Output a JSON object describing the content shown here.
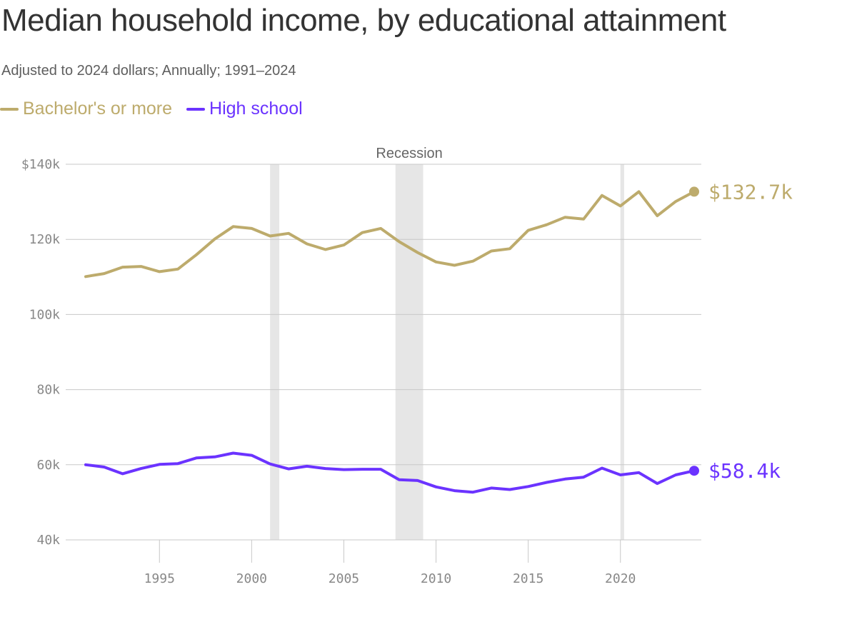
{
  "title": "Median household income, by educational attainment",
  "subtitle": "Adjusted to 2024 dollars; Annually; 1991–2024",
  "legend": [
    {
      "name": "Bachelor's or more",
      "color": "#bdab6c"
    },
    {
      "name": "High school",
      "color": "#6b33ff"
    }
  ],
  "chart_data": {
    "type": "line",
    "title": "Median household income, by educational attainment",
    "subtitle": "Adjusted to 2024 dollars; Annually; 1991–2024",
    "xlabel": "",
    "ylabel": "",
    "xlim": [
      1991,
      2024
    ],
    "ylim": [
      40000,
      140000
    ],
    "y_ticks": [
      {
        "value": 140000,
        "label": "$140k"
      },
      {
        "value": 120000,
        "label": "120k"
      },
      {
        "value": 100000,
        "label": "100k"
      },
      {
        "value": 80000,
        "label": "80k"
      },
      {
        "value": 60000,
        "label": "60k"
      },
      {
        "value": 40000,
        "label": "40k"
      }
    ],
    "x_ticks": [
      1995,
      2000,
      2005,
      2010,
      2015,
      2020
    ],
    "grid": true,
    "legend_position": "top-left",
    "recession_label": "Recession",
    "recessions": [
      {
        "start": 2001.0,
        "end": 2001.5
      },
      {
        "start": 2007.8,
        "end": 2009.3
      },
      {
        "start": 2020.0,
        "end": 2020.2
      }
    ],
    "x": [
      1991,
      1992,
      1993,
      1994,
      1995,
      1996,
      1997,
      1998,
      1999,
      2000,
      2001,
      2002,
      2003,
      2004,
      2005,
      2006,
      2007,
      2008,
      2009,
      2010,
      2011,
      2012,
      2013,
      2014,
      2015,
      2016,
      2017,
      2018,
      2019,
      2020,
      2021,
      2022,
      2023,
      2024
    ],
    "series": [
      {
        "name": "Bachelor's or more",
        "color": "#bdab6c",
        "end_label": "$132.7k",
        "values": [
          110100,
          110900,
          112600,
          112800,
          111400,
          112100,
          115900,
          120100,
          123400,
          122900,
          120900,
          121600,
          118800,
          117300,
          118500,
          121800,
          122900,
          119400,
          116500,
          114000,
          113100,
          114200,
          116900,
          117500,
          122400,
          123900,
          125900,
          125400,
          131700,
          128900,
          132700,
          126300,
          130100,
          132700
        ]
      },
      {
        "name": "High school",
        "color": "#6b33ff",
        "end_label": "$58.4k",
        "values": [
          60000,
          59400,
          57600,
          59000,
          60100,
          60300,
          61800,
          62100,
          63100,
          62500,
          60200,
          58900,
          59600,
          59000,
          58700,
          58800,
          58800,
          56000,
          55800,
          54100,
          53100,
          52700,
          53800,
          53400,
          54200,
          55300,
          56200,
          56700,
          59100,
          57300,
          57900,
          55000,
          57300,
          58400
        ]
      }
    ]
  }
}
